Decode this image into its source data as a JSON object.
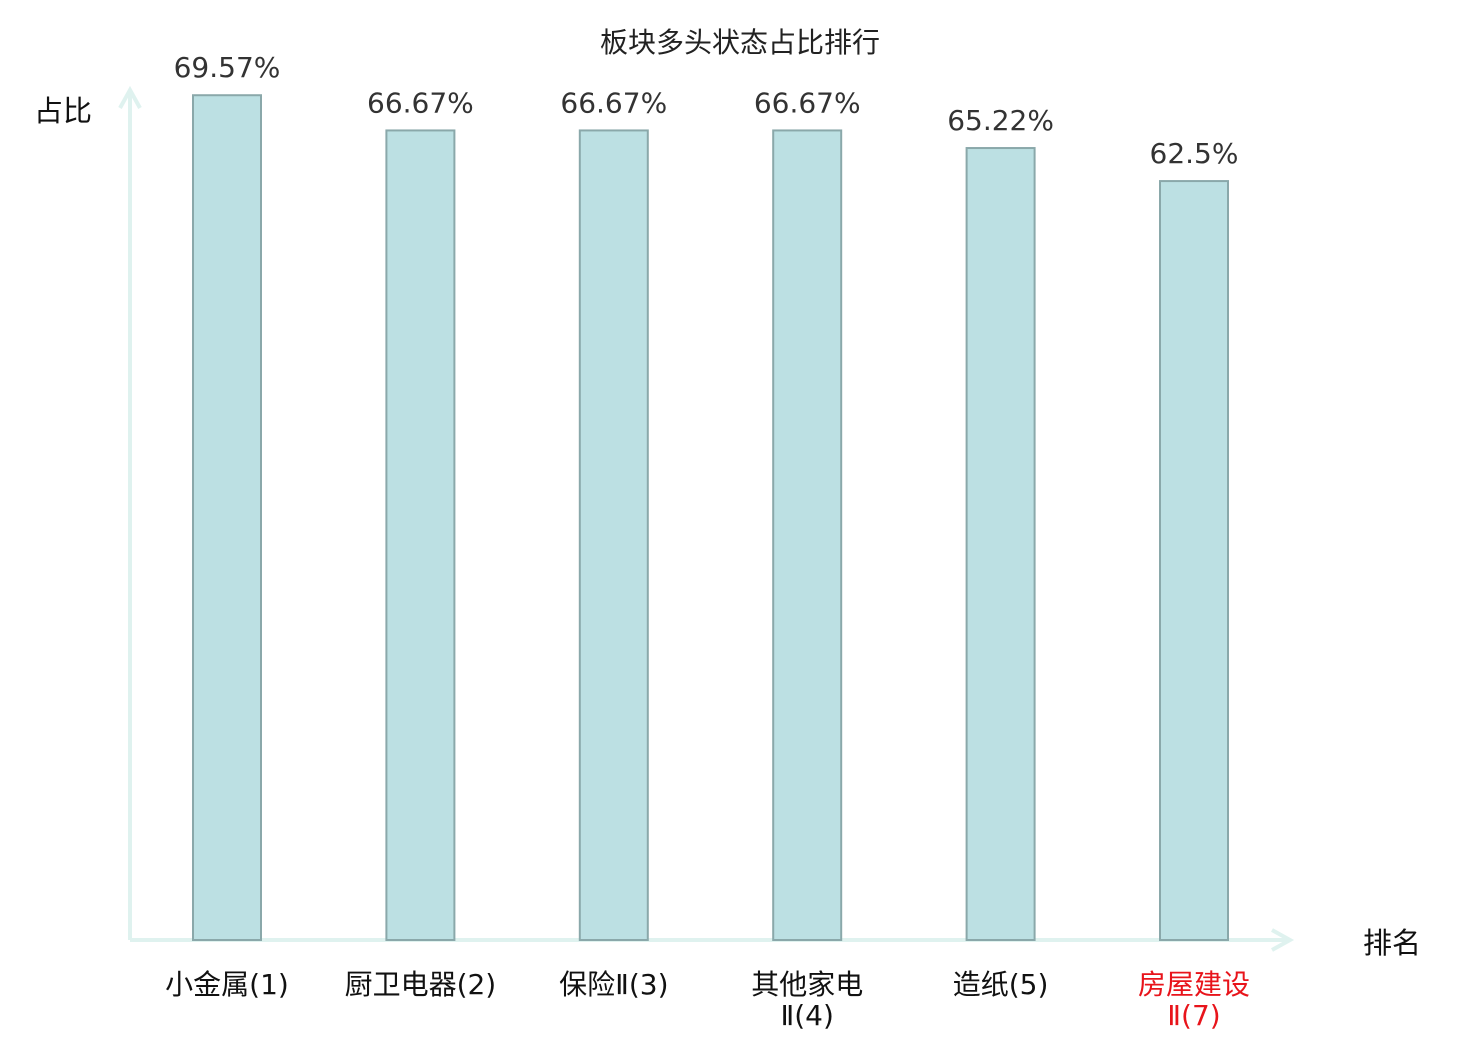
{
  "chart_data": {
    "type": "bar",
    "title": "板块多头状态占比排行",
    "ylabel": "占比",
    "xlabel": "排名",
    "ylim": [
      0,
      70
    ],
    "categories": [
      {
        "line1": "小金属(1)",
        "line2": ""
      },
      {
        "line1": "厨卫电器(2)",
        "line2": ""
      },
      {
        "line1": "保险Ⅱ(3)",
        "line2": ""
      },
      {
        "line1": "其他家电",
        "line2": "Ⅱ(4)"
      },
      {
        "line1": "造纸(5)",
        "line2": ""
      },
      {
        "line1": "房屋建设",
        "line2": "Ⅱ(7)"
      }
    ],
    "values": [
      69.57,
      66.67,
      66.67,
      66.67,
      65.22,
      62.5
    ],
    "value_labels": [
      "69.57%",
      "66.67%",
      "66.67%",
      "66.67%",
      "65.22%",
      "62.5%"
    ],
    "highlight_index": 5,
    "grid": false,
    "colors": {
      "bar_fill": "#bce0e3",
      "bar_stroke": "#8aa8aa",
      "axis": "#dff2ef",
      "highlight_text": "#e8141b",
      "text": "#111111"
    }
  }
}
